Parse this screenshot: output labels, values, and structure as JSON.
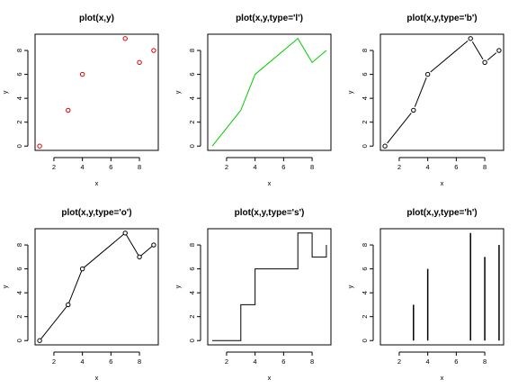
{
  "chart_data": [
    {
      "type": "scatter",
      "title": "plot(x,y)",
      "xlabel": "x",
      "ylabel": "y",
      "x": [
        1,
        3,
        4,
        7,
        8,
        9
      ],
      "y": [
        0,
        3,
        6,
        9,
        7,
        8
      ],
      "xlim": [
        0.68,
        9.32
      ],
      "ylim": [
        -0.36,
        9.36
      ],
      "xticks": [
        2,
        4,
        6,
        8
      ],
      "yticks": [
        0,
        2,
        4,
        6,
        8
      ],
      "color": "#dd0000",
      "grid": false
    },
    {
      "type": "line",
      "title": "plot(x,y,type='l')",
      "xlabel": "x",
      "ylabel": "y",
      "x": [
        1,
        3,
        4,
        7,
        8,
        9
      ],
      "y": [
        0,
        3,
        6,
        9,
        7,
        8
      ],
      "xlim": [
        0.68,
        9.32
      ],
      "ylim": [
        -0.36,
        9.36
      ],
      "xticks": [
        2,
        4,
        6,
        8
      ],
      "yticks": [
        0,
        2,
        4,
        6,
        8
      ],
      "color": "#00cc00",
      "grid": false
    },
    {
      "type": "line",
      "title": "plot(x,y,type='b')",
      "xlabel": "x",
      "ylabel": "y",
      "x": [
        1,
        3,
        4,
        7,
        8,
        9
      ],
      "y": [
        0,
        3,
        6,
        9,
        7,
        8
      ],
      "xlim": [
        0.68,
        9.32
      ],
      "ylim": [
        -0.36,
        9.36
      ],
      "xticks": [
        2,
        4,
        6,
        8
      ],
      "yticks": [
        0,
        2,
        4,
        6,
        8
      ],
      "color": "#000000",
      "grid": false
    },
    {
      "type": "line",
      "title": "plot(x,y,type='o')",
      "xlabel": "x",
      "ylabel": "y",
      "x": [
        1,
        3,
        4,
        7,
        8,
        9
      ],
      "y": [
        0,
        3,
        6,
        9,
        7,
        8
      ],
      "xlim": [
        0.68,
        9.32
      ],
      "ylim": [
        -0.36,
        9.36
      ],
      "xticks": [
        2,
        4,
        6,
        8
      ],
      "yticks": [
        0,
        2,
        4,
        6,
        8
      ],
      "color": "#000000",
      "grid": false
    },
    {
      "type": "line",
      "title": "plot(x,y,type='s')",
      "xlabel": "x",
      "ylabel": "y",
      "x": [
        1,
        3,
        4,
        7,
        8,
        9
      ],
      "y": [
        0,
        3,
        6,
        9,
        7,
        8
      ],
      "xlim": [
        0.68,
        9.32
      ],
      "ylim": [
        -0.36,
        9.36
      ],
      "xticks": [
        2,
        4,
        6,
        8
      ],
      "yticks": [
        0,
        2,
        4,
        6,
        8
      ],
      "color": "#000000",
      "grid": false
    },
    {
      "type": "bar",
      "title": "plot(x,y,type='h')",
      "xlabel": "x",
      "ylabel": "y",
      "x": [
        1,
        3,
        4,
        7,
        8,
        9
      ],
      "y": [
        0,
        3,
        6,
        9,
        7,
        8
      ],
      "xlim": [
        0.68,
        9.32
      ],
      "ylim": [
        -0.36,
        9.36
      ],
      "xticks": [
        2,
        4,
        6,
        8
      ],
      "yticks": [
        0,
        2,
        4,
        6,
        8
      ],
      "color": "#000000",
      "grid": false
    }
  ]
}
